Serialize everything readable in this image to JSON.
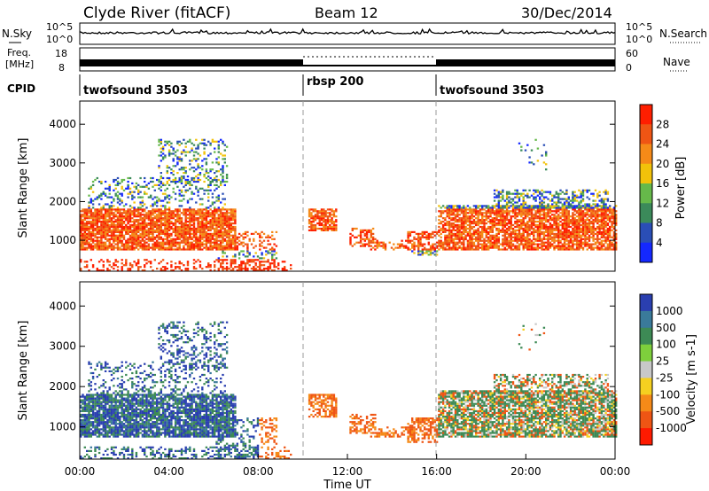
{
  "header": {
    "station": "Clyde River (fitACF)",
    "beam": "Beam 12",
    "date": "30/Dec/2014"
  },
  "top_panels": {
    "nsky": {
      "label": "N.Sky",
      "tick_top": "10^5",
      "tick_bottom": "10^0",
      "right_label": "N.Search",
      "right_tick_top": "10^5",
      "right_tick_bottom": "10^0"
    },
    "freq": {
      "label_line1": "Freq.",
      "label_line2": "[MHz]",
      "tick_top": "18",
      "tick_bottom": "8",
      "right_label": "Nave",
      "right_tick_top": "60",
      "right_tick_bottom": "0"
    },
    "cpid": {
      "label": "CPID",
      "segments": [
        {
          "name": "twofsound 3503",
          "start_hour": 0,
          "end_hour": 10
        },
        {
          "name": "rbsp 200",
          "start_hour": 10,
          "end_hour": 16
        },
        {
          "name": "twofsound 3503",
          "start_hour": 16,
          "end_hour": 24
        }
      ]
    }
  },
  "chart_data": [
    {
      "type": "heatmap",
      "panel": "power",
      "ylabel": "Slant Range [km]",
      "xlim_hours": [
        0,
        24
      ],
      "ylim_km": [
        200,
        4600
      ],
      "yticks": [
        1000,
        2000,
        3000,
        4000
      ],
      "colorbar": {
        "label": "Power [dB]",
        "ticks": [
          "4",
          "8",
          "12",
          "16",
          "20",
          "24",
          "28"
        ],
        "colors": [
          "#1428ff",
          "#2a4eb6",
          "#3b8a5a",
          "#66b94a",
          "#f2c20a",
          "#f58a18",
          "#ef5514",
          "#ff1e00"
        ]
      },
      "dominant_level_by_range_band": {
        "700-1800 km": "high (20-28 dB)",
        "1800-4400 km": "mixed (4-20 dB)"
      }
    },
    {
      "type": "heatmap",
      "panel": "velocity",
      "ylabel": "Slant Range [km]",
      "xlim_hours": [
        0,
        24
      ],
      "ylim_km": [
        200,
        4600
      ],
      "yticks": [
        1000,
        2000,
        3000,
        4000
      ],
      "colorbar": {
        "label": "Velocity [m s-1]",
        "ticks": [
          "1000",
          "500",
          "100",
          "25",
          "-25",
          "-100",
          "-500",
          "-1000"
        ],
        "colors": [
          "#2a3fb0",
          "#3a7a9a",
          "#3d8a55",
          "#7ecf3c",
          "#c8c8c8",
          "#f5d020",
          "#f58a18",
          "#ef5514",
          "#ff1a00"
        ]
      },
      "dominant_sign_by_time": {
        "00:00-08:00": "positive (toward radar)",
        "10:00-16:00": "negative (away)",
        "16:00-24:00": "mixed"
      }
    }
  ],
  "x_axis": {
    "ticks": [
      "00:00",
      "04:00",
      "08:00",
      "12:00",
      "16:00",
      "20:00",
      "00:00"
    ],
    "label": "Time UT"
  },
  "colors": {
    "frame": "#000000",
    "dashed_marker": "#999999"
  }
}
